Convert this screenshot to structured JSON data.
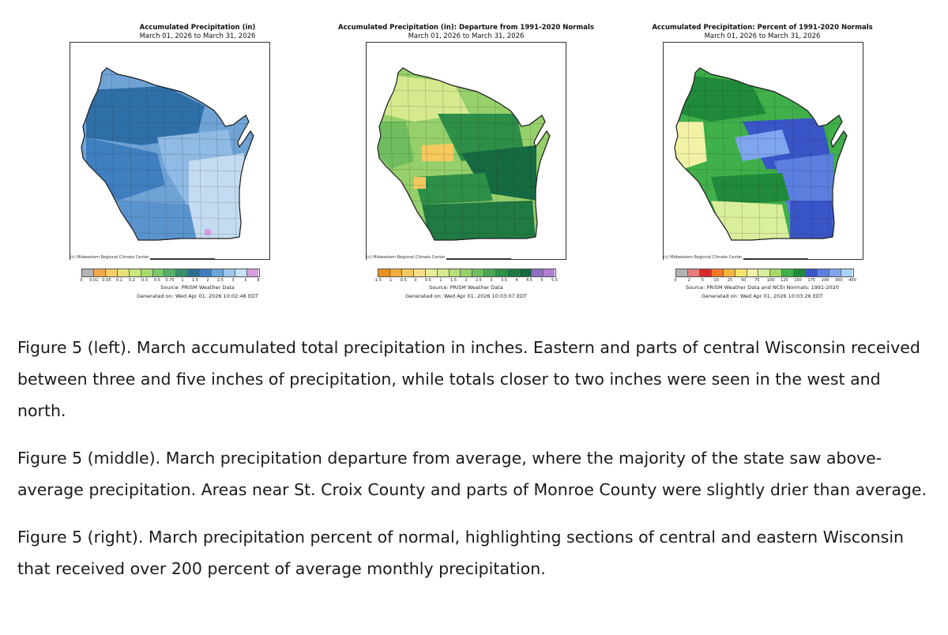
{
  "maps": [
    {
      "title": "Accumulated Precipitation (in)",
      "subtitle": "March 01, 2026 to March 31, 2026",
      "credit": "(c) Midwestern Regional Climate Center",
      "legend": {
        "colors": [
          "#b3b3b3",
          "#f2a94b",
          "#f6cf66",
          "#e6e27a",
          "#cbe57a",
          "#a6db6c",
          "#7cc76b",
          "#56b06b",
          "#3a8f6e",
          "#2c6e8f",
          "#3f7fbf",
          "#6aa3d6",
          "#9cc6e9",
          "#c6e0f5",
          "#d59ee0"
        ],
        "ticks": [
          "0",
          "0.01",
          "0.05",
          "0.1",
          "0.2",
          "0.3",
          "0.5",
          "0.75",
          "1",
          "1.5",
          "2",
          "2.5",
          "3",
          "5",
          "8"
        ]
      },
      "source": "Source: PRISM Weather Data",
      "generated": "Generated on: Wed Apr 01, 2026 10:02:48 EDT"
    },
    {
      "title": "Accumulated Precipitation (in): Departure from 1991-2020 Normals",
      "subtitle": "March 01, 2026 to March 31, 2026",
      "credit": "(c) Midwestern Regional Climate Center",
      "legend": {
        "colors": [
          "#e8921f",
          "#f0ad3a",
          "#f6c95f",
          "#f6df87",
          "#e9ec9c",
          "#d5ea8e",
          "#b8df7a",
          "#96d06b",
          "#6fbd5e",
          "#49a652",
          "#2e8f48",
          "#1f7a43",
          "#166a41",
          "#8e6fc0",
          "#b07ed3"
        ],
        "ticks": [
          "-1.5",
          "-1",
          "-0.5",
          "0",
          "0.5",
          "1",
          "1.5",
          "2",
          "2.5",
          "3",
          "3.5",
          "4",
          "4.5",
          "5",
          "5.5"
        ]
      },
      "source": "Source: PRISM Weather Data",
      "generated": "Generated on: Wed Apr 01, 2026 10:03:07 EDT"
    },
    {
      "title": "Accumulated Precipitation: Percent of 1991-2020 Normals",
      "subtitle": "March 01, 2026 to March 31, 2026",
      "credit": "(c) Midwestern Regional Climate Center",
      "legend": {
        "colors": [
          "#b3b3b3",
          "#e87b7b",
          "#d92b2b",
          "#f07a2a",
          "#f6b43f",
          "#f6e36a",
          "#f2f2a6",
          "#d9ef9c",
          "#a6d96a",
          "#3fb04a",
          "#1f8a3a",
          "#3a55c8",
          "#5c7fe0",
          "#7fa6ee",
          "#a6d3f5"
        ],
        "ticks": [
          "0",
          "2",
          "5",
          "10",
          "25",
          "50",
          "75",
          "100",
          "125",
          "150",
          "175",
          "200",
          "300",
          "400"
        ]
      },
      "source": "Source: PRISM Weather Data and NCEI Normals: 1991-2020",
      "generated": "Generated on: Wed Apr 01, 2026 10:03:26 EDT"
    }
  ],
  "captions": [
    "Figure 5 (left). March accumulated total precipitation in inches. Eastern and parts of central Wisconsin received between three and five inches of precipitation, while totals closer to two inches were seen in the west and north.",
    "Figure 5 (middle). March precipitation departure from average, where the majority of the state saw above-average precipitation. Areas near St. Croix County and parts of Monroe County were slightly drier than average.",
    "Figure 5 (right). March precipitation percent of normal, highlighting sections of central and eastern Wisconsin that received over 200 percent of average monthly precipitation."
  ],
  "map_style": {
    "left": {
      "base": "#6fa3d6",
      "zones": [
        "#2f6fa8",
        "#3f7fbf",
        "#5a94cf",
        "#8fbbe4",
        "#c4dcf2",
        "#d59ee0"
      ]
    },
    "middle": {
      "base": "#96d06b",
      "zones": [
        "#d5ea8e",
        "#f6c95f",
        "#6fbd5e",
        "#2e8f48",
        "#166a41",
        "#1f7a43"
      ]
    },
    "right": {
      "base": "#3fb04a",
      "zones": [
        "#d9ef9c",
        "#f2f2a6",
        "#1f8a3a",
        "#3a55c8",
        "#5c7fe0",
        "#7fa6ee"
      ]
    }
  }
}
